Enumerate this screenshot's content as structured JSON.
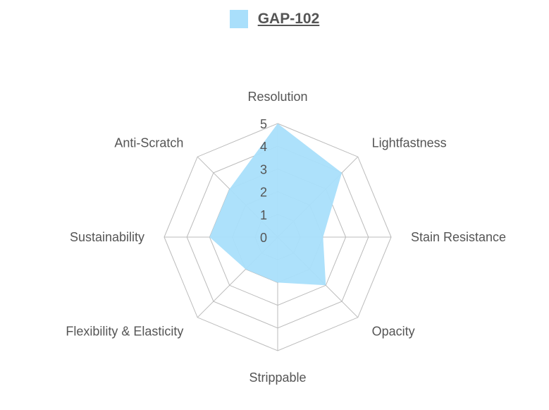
{
  "legend": {
    "series_name": "GAP-102",
    "color": "#a9dffb"
  },
  "chart_data": {
    "type": "radar",
    "categories": [
      "Resolution",
      "Lightfastness",
      "Stain Resistance",
      "Opacity",
      "Strippable",
      "Flexibility & Elasticity",
      "Sustainability",
      "Anti-Scratch"
    ],
    "series": [
      {
        "name": "GAP-102",
        "values": [
          5,
          4,
          2,
          3,
          2,
          2,
          3,
          3
        ],
        "fill": "#a9dffb"
      }
    ],
    "scale_ticks": [
      "0",
      "1",
      "2",
      "3",
      "4",
      "5"
    ],
    "rmin": 0,
    "rmax": 5,
    "grid_color": "#bbbbbb"
  }
}
